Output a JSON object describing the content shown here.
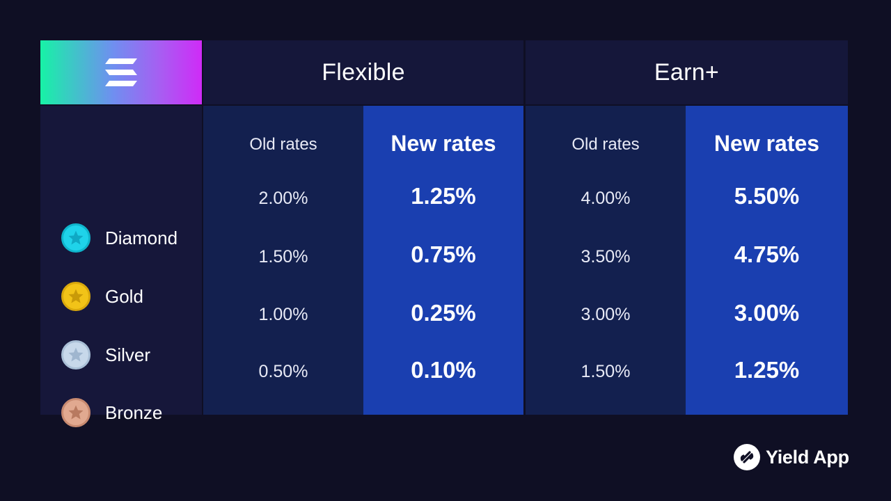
{
  "header": {
    "logo_icon": "solana-logo-icon",
    "flexible_title": "Flexible",
    "earn_title": "Earn+"
  },
  "subheaders": {
    "flexible_old": "Old rates",
    "flexible_new": "New rates",
    "earn_old": "Old rates",
    "earn_new": "New rates"
  },
  "tiers": [
    {
      "name": "Diamond",
      "icon": "star-medal-icon",
      "color": "#1fd3ea",
      "flexible_old": "2.00%",
      "flexible_new": "1.25%",
      "earn_old": "4.00%",
      "earn_new": "5.50%"
    },
    {
      "name": "Gold",
      "icon": "star-medal-icon",
      "color": "#f2c318",
      "flexible_old": "1.50%",
      "flexible_new": "0.75%",
      "earn_old": "3.50%",
      "earn_new": "4.75%"
    },
    {
      "name": "Silver",
      "icon": "star-medal-icon",
      "color": "#b9cde3",
      "flexible_old": "1.00%",
      "flexible_new": "0.25%",
      "earn_old": "3.00%",
      "earn_new": "3.00%"
    },
    {
      "name": "Bronze",
      "icon": "star-medal-icon",
      "color": "#dca08a",
      "flexible_old": "0.50%",
      "flexible_new": "0.10%",
      "earn_old": "1.50%",
      "earn_new": "1.25%"
    }
  ],
  "brand": {
    "name": "Yield App",
    "icon": "yield-app-logo-icon"
  },
  "colors": {
    "background": "#0f0f24",
    "new_rates_column": "#1a3fb0",
    "old_rates_column": "#13204f",
    "header": "#15173a"
  }
}
